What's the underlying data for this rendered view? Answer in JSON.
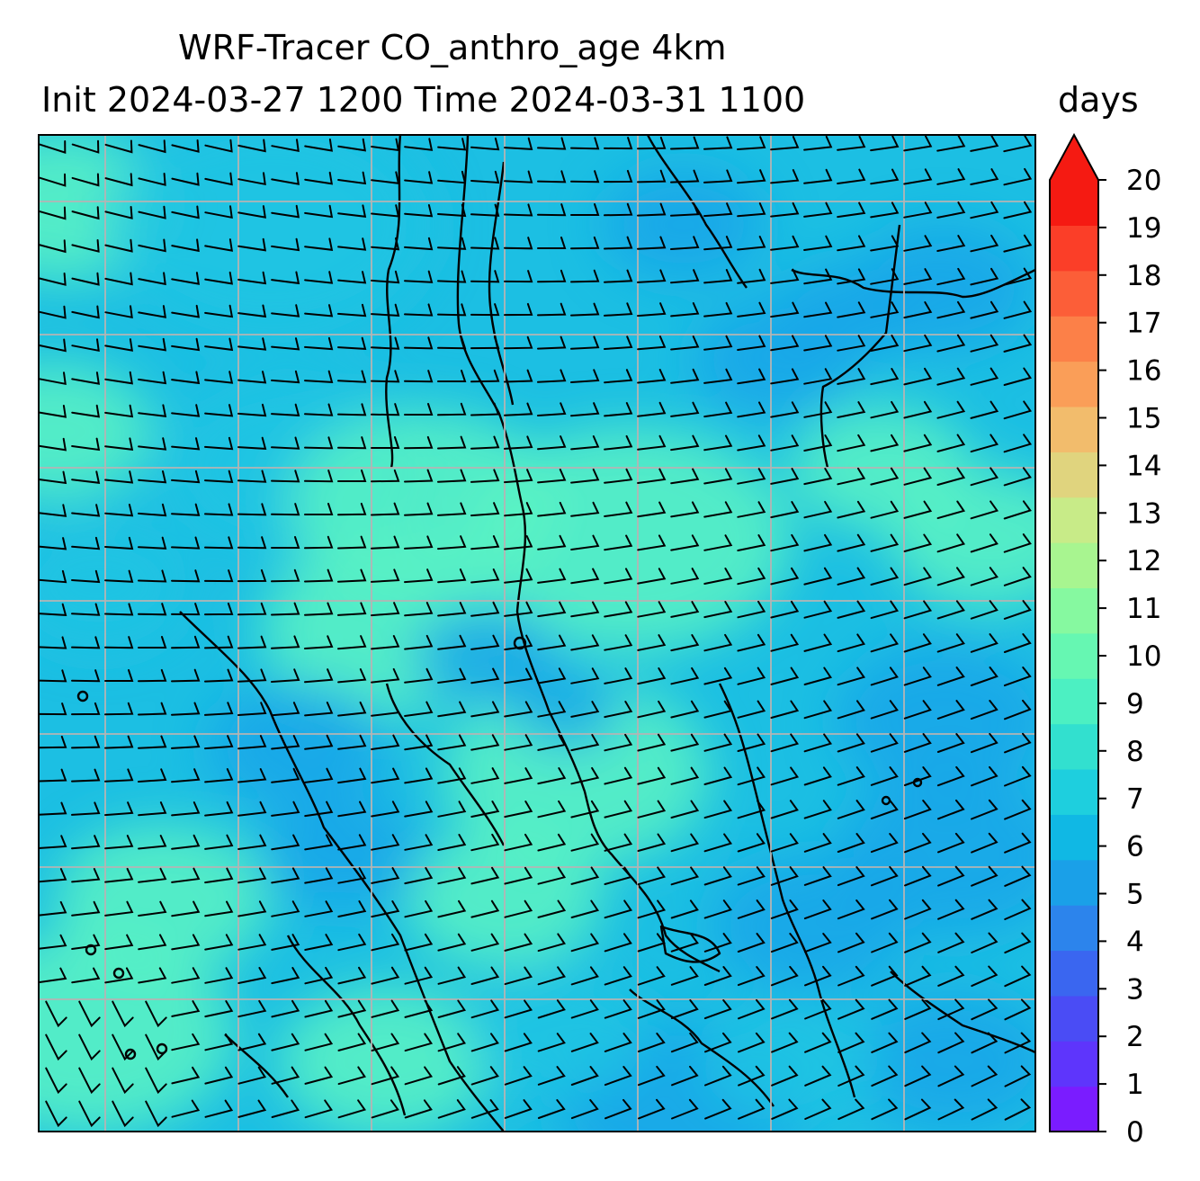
{
  "title": {
    "line1": "WRF-Tracer CO_anthro_age 4km",
    "line2": "Init 2024-03-27 1200 Time 2024-03-31 1100"
  },
  "colorbar": {
    "units": "days",
    "ticks": [
      "0",
      "1",
      "2",
      "3",
      "4",
      "5",
      "6",
      "7",
      "8",
      "9",
      "10",
      "11",
      "12",
      "13",
      "14",
      "15",
      "16",
      "17",
      "18",
      "19",
      "20"
    ],
    "levels": [
      "#7a1cff",
      "#5e35fc",
      "#4a4cf5",
      "#3a66f0",
      "#2c84ec",
      "#1aa0e8",
      "#10b8e4",
      "#1ecfde",
      "#32e0cf",
      "#4cf0c2",
      "#66f7b2",
      "#86f9a0",
      "#a8f590",
      "#c8eb88",
      "#e0d47e",
      "#f2bc6c",
      "#fa9e58",
      "#fc8048",
      "#fc5e38",
      "#fb3e28",
      "#f51a12"
    ],
    "extend_color": "#f51a12",
    "range": [
      0,
      20
    ],
    "extend": "max"
  },
  "map": {
    "field": "CO_anthro_age",
    "background_colors": {
      "low": "#14a6e9",
      "mid": "#1ec4e3",
      "high": "#5cf3c3"
    },
    "gridlines": true,
    "wind_barbs": true
  }
}
